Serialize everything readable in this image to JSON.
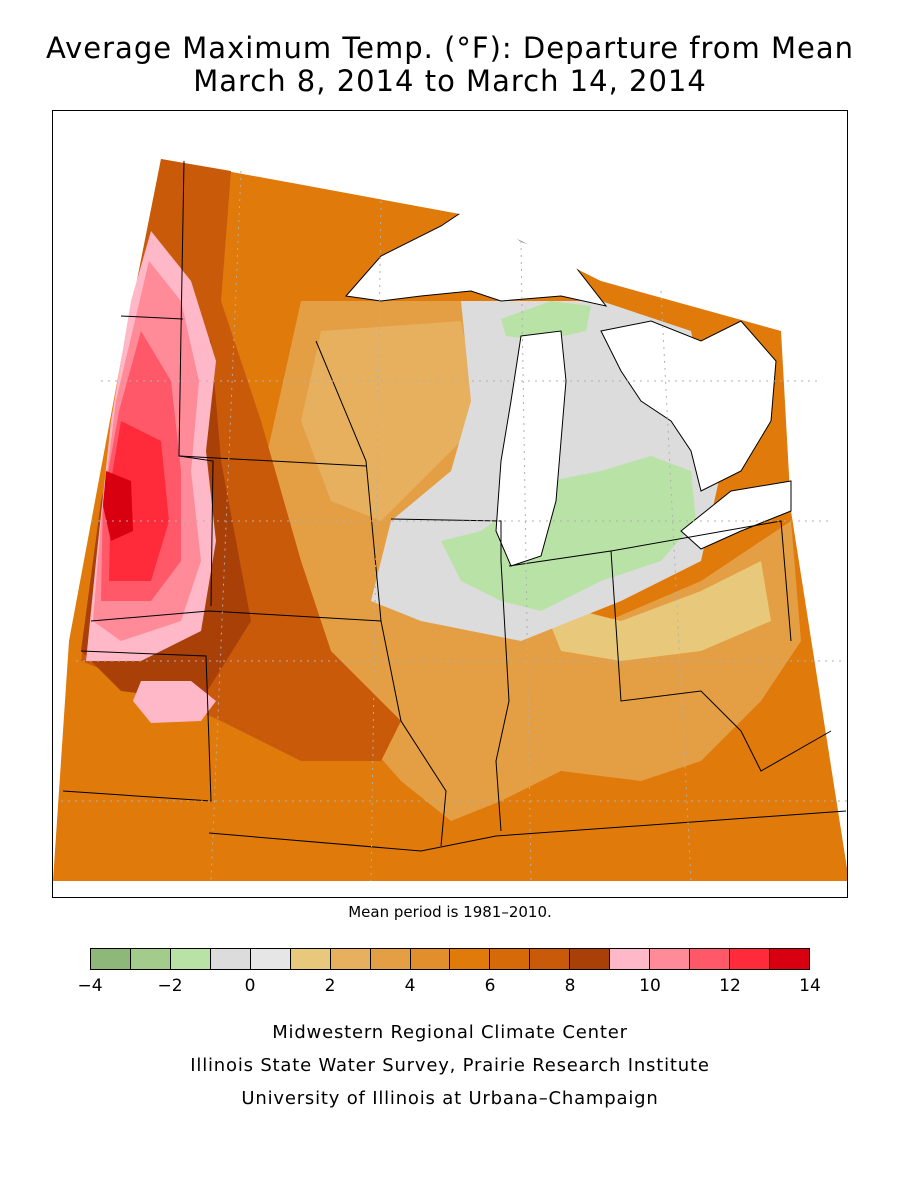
{
  "title_line1": "Average Maximum Temp. (°F): Departure from Mean",
  "title_line2": "March 8, 2014 to March 14, 2014",
  "mean_note": "Mean period is 1981–2010.",
  "legend": {
    "colors": [
      "#8db87a",
      "#a3cc8c",
      "#b9e2a6",
      "#dcdcdc",
      "#e6e6e6",
      "#e8c87a",
      "#e6b05e",
      "#e49e44",
      "#e38e2c",
      "#e07a0a",
      "#d76a08",
      "#c85a0a",
      "#a84008",
      "#ffb8c8",
      "#ff8a98",
      "#ff5868",
      "#ff2a3a",
      "#d80010"
    ],
    "ticks": [
      "−4",
      "−2",
      "0",
      "2",
      "4",
      "6",
      "8",
      "10",
      "12",
      "14"
    ]
  },
  "credits": [
    "Midwestern Regional Climate Center",
    "Illinois State Water Survey, Prairie Research Institute",
    "University of Illinois at Urbana–Champaign"
  ]
}
